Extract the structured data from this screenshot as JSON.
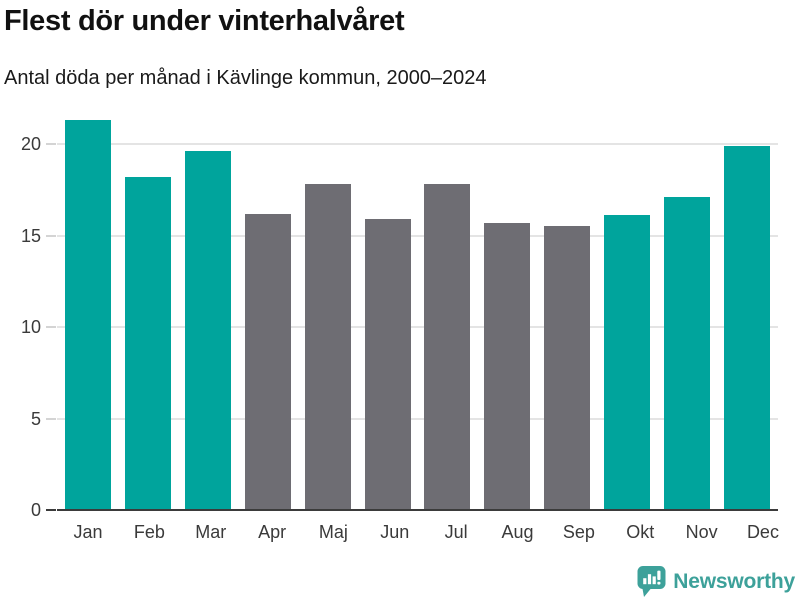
{
  "header": {
    "title": "Flest dör under vinterhalvåret",
    "subtitle": "Antal döda per månad i Kävlinge kommun, 2000–2024"
  },
  "chart_data": {
    "type": "bar",
    "title": "Flest dör under vinterhalvåret",
    "subtitle": "Antal döda per månad i Kävlinge kommun, 2000–2024",
    "categories": [
      "Jan",
      "Feb",
      "Mar",
      "Apr",
      "Maj",
      "Jun",
      "Jul",
      "Aug",
      "Sep",
      "Okt",
      "Nov",
      "Dec"
    ],
    "values": [
      21.3,
      18.2,
      19.6,
      16.2,
      17.8,
      15.9,
      17.8,
      15.7,
      15.5,
      16.1,
      17.1,
      19.9
    ],
    "bar_color_keys": [
      "teal",
      "teal",
      "teal",
      "gray",
      "gray",
      "gray",
      "gray",
      "gray",
      "gray",
      "teal",
      "teal",
      "teal"
    ],
    "colors": {
      "teal": "#00a49c",
      "gray": "#6e6d73"
    },
    "highlight_meaning": "winter-half-year months in teal, summer-half-year months in gray",
    "xlabel": "",
    "ylabel": "",
    "yticks": [
      0,
      5,
      10,
      15,
      20
    ],
    "ylim": [
      0,
      21.9
    ],
    "grid": true,
    "legend": false,
    "gridline_color": "#e4e4e4",
    "axisline_color": "#3b3b3b"
  },
  "footer": {
    "brand": "Newsworthy",
    "brand_color": "#3da19a",
    "logo_icon": "newsworthy-chart-bubble-icon"
  }
}
